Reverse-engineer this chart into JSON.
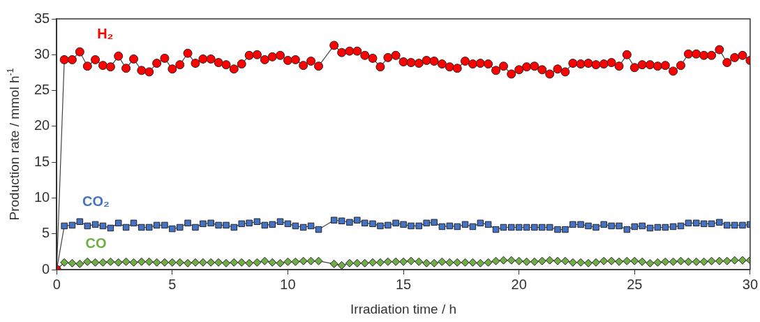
{
  "chart_data": {
    "type": "line",
    "xlabel": "Irradiation time / h",
    "ylabel": "Production rate / mmol h$^{-1}$",
    "x": [
      0,
      0.33,
      0.67,
      1,
      1.33,
      1.67,
      2,
      2.33,
      2.67,
      3,
      3.33,
      3.67,
      4,
      4.33,
      4.67,
      5,
      5.33,
      5.67,
      6,
      6.33,
      6.67,
      7,
      7.33,
      7.67,
      8,
      8.33,
      8.67,
      9,
      9.33,
      9.67,
      10,
      10.33,
      10.67,
      11,
      11.33,
      12,
      12.33,
      12.67,
      13,
      13.33,
      13.67,
      14,
      14.33,
      14.67,
      15,
      15.33,
      15.67,
      16,
      16.33,
      16.67,
      17,
      17.33,
      17.67,
      18,
      18.33,
      18.67,
      19,
      19.33,
      19.67,
      20,
      20.33,
      20.67,
      21,
      21.33,
      21.67,
      22,
      22.33,
      22.67,
      23,
      23.33,
      23.67,
      24,
      24.33,
      24.67,
      25,
      25.33,
      25.67,
      26,
      26.33,
      26.67,
      27,
      27.33,
      27.67,
      28,
      28.33,
      28.67,
      29,
      29.33,
      29.67,
      30
    ],
    "series": [
      {
        "name": "H₂",
        "color": "#ff0000",
        "marker": "circle",
        "values": [
          0,
          29.3,
          29.3,
          30.4,
          28.4,
          29.3,
          28.5,
          28.3,
          29.8,
          28.1,
          29.4,
          27.8,
          27.6,
          28.8,
          29.5,
          28.0,
          28.6,
          30.2,
          28.8,
          29.4,
          29.4,
          28.9,
          28.6,
          28.0,
          28.7,
          29.9,
          30.0,
          29.3,
          29.7,
          29.9,
          29.2,
          29.3,
          28.5,
          29.1,
          28.4,
          31.3,
          30.3,
          30.5,
          30.5,
          29.9,
          29.5,
          28.3,
          29.6,
          29.9,
          29.0,
          28.9,
          28.8,
          29.2,
          29.1,
          28.7,
          28.3,
          28.1,
          29.1,
          28.7,
          28.8,
          28.7,
          27.8,
          28.4,
          27.3,
          27.9,
          28.3,
          28.4,
          27.9,
          27.3,
          28.0,
          27.6,
          28.8,
          28.7,
          28.8,
          28.6,
          28.7,
          28.9,
          28.4,
          30.0,
          28.2,
          28.6,
          28.6,
          28.4,
          28.5,
          27.7,
          28.5,
          30.1,
          30.1,
          29.9,
          29.9,
          30.7,
          28.9,
          29.6,
          29.9,
          29.2
        ]
      },
      {
        "name": "CO₂",
        "color": "#4472c4",
        "marker": "square",
        "values": [
          0,
          6.1,
          6.2,
          6.7,
          6.1,
          6.3,
          6.1,
          5.8,
          6.5,
          5.9,
          6.5,
          5.9,
          5.9,
          6.2,
          6.2,
          5.7,
          5.9,
          6.5,
          5.9,
          6.4,
          6.5,
          6.2,
          6.2,
          5.9,
          6.4,
          6.5,
          6.7,
          6.2,
          6.3,
          6.7,
          6.4,
          6.1,
          5.9,
          6.1,
          5.6,
          6.9,
          6.8,
          6.6,
          6.9,
          6.5,
          6.4,
          6.1,
          6.2,
          6.5,
          6.3,
          6.1,
          6.1,
          6.5,
          6.6,
          6.0,
          6.1,
          6.0,
          6.3,
          6.0,
          6.5,
          6.3,
          5.6,
          5.9,
          5.9,
          5.9,
          5.9,
          5.9,
          5.9,
          5.9,
          5.6,
          5.6,
          6.3,
          6.3,
          6.1,
          5.9,
          6.3,
          6.1,
          6.1,
          5.6,
          6.0,
          6.1,
          5.8,
          5.9,
          5.9,
          6.0,
          6.1,
          6.5,
          6.5,
          6.4,
          6.4,
          6.6,
          6.2,
          6.2,
          6.2,
          6.3
        ]
      },
      {
        "name": "CO",
        "color": "#70ad47",
        "marker": "diamond",
        "values": [
          0,
          1.0,
          0.9,
          0.8,
          1.1,
          1.0,
          1.0,
          1.1,
          1.0,
          1.1,
          1.0,
          1.1,
          1.1,
          1.0,
          1.0,
          1.0,
          1.0,
          0.9,
          1.0,
          1.0,
          1.0,
          1.0,
          0.9,
          1.0,
          1.0,
          0.9,
          1.0,
          1.2,
          1.0,
          0.9,
          1.1,
          1.1,
          1.2,
          1.2,
          1.2,
          0.8,
          0.6,
          0.9,
          0.9,
          0.9,
          1.0,
          1.0,
          1.1,
          1.1,
          1.1,
          1.2,
          1.1,
          0.9,
          0.9,
          1.1,
          1.0,
          1.0,
          1.0,
          1.0,
          0.9,
          1.0,
          1.2,
          1.3,
          1.3,
          1.2,
          1.1,
          1.1,
          1.2,
          1.3,
          1.2,
          1.2,
          1.0,
          1.0,
          0.9,
          1.0,
          1.2,
          1.2,
          1.1,
          1.2,
          1.2,
          1.1,
          0.9,
          1.0,
          1.1,
          1.1,
          1.2,
          1.1,
          1.1,
          1.1,
          1.2,
          1.2,
          1.2,
          1.3,
          1.3,
          1.3
        ]
      }
    ],
    "xlim": [
      0,
      30
    ],
    "xticks": [
      0,
      5,
      10,
      15,
      20,
      25,
      30
    ],
    "ylim": [
      0,
      35
    ],
    "yticks": [
      0,
      5,
      10,
      15,
      20,
      25,
      30,
      35
    ],
    "grid": false,
    "legend": false
  }
}
